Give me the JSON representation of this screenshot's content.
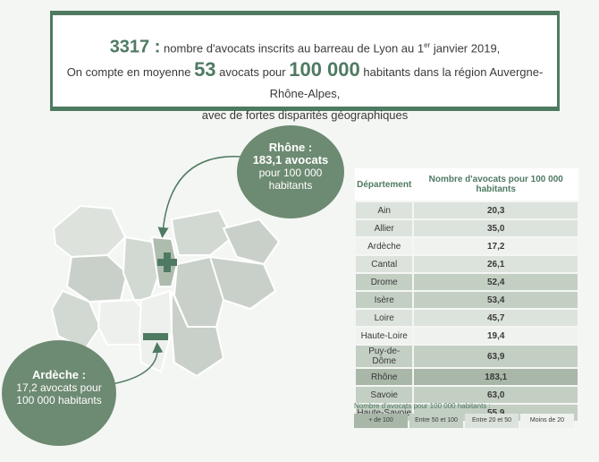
{
  "header": {
    "count": "3317 :",
    "line1_text": "nombre d'avocats inscrits au barreau de Lyon au 1",
    "line1_sup": "er",
    "line1_end": "janvier 2019,",
    "line2_start": "On compte en moyenne",
    "line2_num1": "53",
    "line2_mid": "avocats pour",
    "line2_num2": "100 000",
    "line2_end": "habitants dans la région Auvergne-Rhône-Alpes,",
    "line3": "avec de fortes disparités géographiques"
  },
  "callouts": {
    "rhone": {
      "name": "Rhône :",
      "value_text": "183,1 avocats",
      "line2": "pour 100 000",
      "line3": "habitants"
    },
    "ardeche": {
      "name": "Ardèche :",
      "value_text": "17,2 avocats pour",
      "line2": "100 000 habitants"
    }
  },
  "table": {
    "col1": "Département",
    "col2": "Nombre d'avocats pour 100 000 habitants",
    "rows": [
      {
        "dept": "Ain",
        "value": "20,3",
        "class": "c3"
      },
      {
        "dept": "Allier",
        "value": "35,0",
        "class": "c3"
      },
      {
        "dept": "Ardèche",
        "value": "17,2",
        "class": "c4"
      },
      {
        "dept": "Cantal",
        "value": "26,1",
        "class": "c3"
      },
      {
        "dept": "Drome",
        "value": "52,4",
        "class": "c2"
      },
      {
        "dept": "Isère",
        "value": "53,4",
        "class": "c2"
      },
      {
        "dept": "Loire",
        "value": "45,7",
        "class": "c3"
      },
      {
        "dept": "Haute-Loire",
        "value": "19,4",
        "class": "c4"
      },
      {
        "dept": "Puy-de-Dôme",
        "value": "63,9",
        "class": "c2"
      },
      {
        "dept": "Rhône",
        "value": "183,1",
        "class": "c1"
      },
      {
        "dept": "Savoie",
        "value": "63,0",
        "class": "c2"
      },
      {
        "dept": "Haute-Savoie",
        "value": "55,9",
        "class": "c2"
      }
    ]
  },
  "legend": {
    "title": "Nombre d'avocats pour 100 000 habitants :",
    "items": [
      "+ de 100",
      "Entre 50 et 100",
      "Entre 20 et 50",
      "Moins de 20"
    ]
  },
  "colors": {
    "accent": "#4f7a62",
    "bubble": "#6d8a72"
  }
}
